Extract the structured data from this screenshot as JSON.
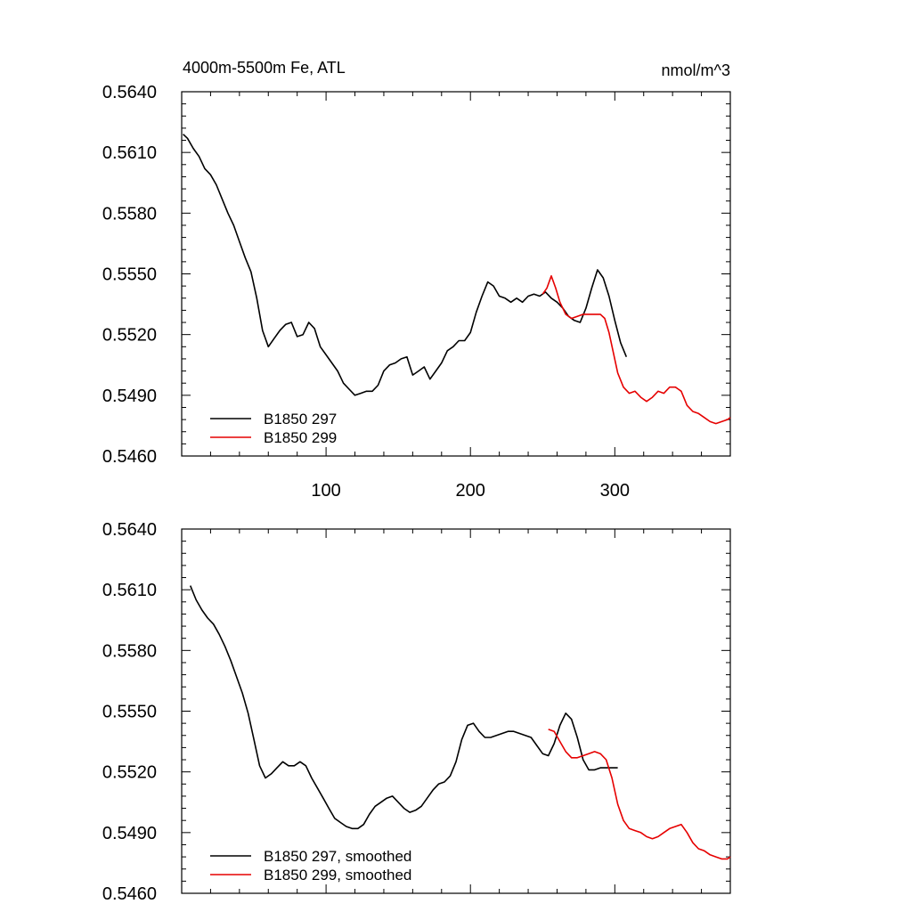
{
  "chart_data": [
    {
      "type": "line",
      "title": "4000m-5500m Fe, ATL",
      "units": "nmol/m^3",
      "xlim": [
        0,
        380
      ],
      "ylim": [
        0.546,
        0.564
      ],
      "yticks": [
        "0.5460",
        "0.5490",
        "0.5520",
        "0.5550",
        "0.5580",
        "0.5610",
        "0.5640"
      ],
      "xticks": [
        "100",
        "200",
        "300"
      ],
      "legend_placement": "bottom-left",
      "series": [
        {
          "name": "B1850 297",
          "color": "#000000",
          "x": [
            1,
            4,
            8,
            12,
            16,
            20,
            24,
            28,
            32,
            36,
            40,
            44,
            48,
            52,
            56,
            60,
            64,
            68,
            72,
            76,
            80,
            84,
            88,
            92,
            96,
            100,
            104,
            108,
            112,
            116,
            120,
            124,
            128,
            132,
            136,
            140,
            144,
            148,
            152,
            156,
            160,
            164,
            168,
            172,
            176,
            180,
            184,
            188,
            192,
            196,
            200,
            204,
            208,
            212,
            216,
            220,
            224,
            228,
            232,
            236,
            240,
            244,
            248,
            252,
            256,
            260,
            264,
            268,
            272,
            276,
            280,
            284,
            288,
            292,
            296,
            300,
            304,
            308
          ],
          "values": [
            0.5619,
            0.5617,
            0.5612,
            0.5608,
            0.5602,
            0.5599,
            0.5594,
            0.5587,
            0.558,
            0.5574,
            0.5566,
            0.5558,
            0.5551,
            0.5538,
            0.5522,
            0.5514,
            0.5518,
            0.5522,
            0.5525,
            0.5526,
            0.5519,
            0.552,
            0.5526,
            0.5523,
            0.5514,
            0.551,
            0.5506,
            0.5502,
            0.5496,
            0.5493,
            0.549,
            0.5491,
            0.5492,
            0.5492,
            0.5495,
            0.5502,
            0.5505,
            0.5506,
            0.5508,
            0.5509,
            0.55,
            0.5502,
            0.5504,
            0.5498,
            0.5502,
            0.5506,
            0.5512,
            0.5514,
            0.5517,
            0.5517,
            0.5521,
            0.5531,
            0.5539,
            0.5546,
            0.5544,
            0.5539,
            0.5538,
            0.5536,
            0.5538,
            0.5536,
            0.5539,
            0.554,
            0.5539,
            0.5541,
            0.5538,
            0.5536,
            0.5533,
            0.5529,
            0.5527,
            0.5526,
            0.5533,
            0.5543,
            0.5552,
            0.5548,
            0.5539,
            0.5527,
            0.5516,
            0.5509
          ]
        },
        {
          "name": "B1850 299",
          "color": "#e60000",
          "x": [
            250,
            253,
            256,
            259,
            262,
            266,
            270,
            274,
            278,
            282,
            286,
            290,
            293,
            296,
            299,
            302,
            306,
            310,
            314,
            318,
            322,
            326,
            330,
            334,
            338,
            342,
            346,
            350,
            354,
            358,
            362,
            366,
            370,
            374,
            378,
            382
          ],
          "values": [
            0.554,
            0.5543,
            0.5549,
            0.5543,
            0.5536,
            0.553,
            0.5528,
            0.5529,
            0.553,
            0.553,
            0.553,
            0.553,
            0.5528,
            0.5521,
            0.5511,
            0.5501,
            0.5494,
            0.5491,
            0.5492,
            0.5489,
            0.5487,
            0.5489,
            0.5492,
            0.5491,
            0.5494,
            0.5494,
            0.5492,
            0.5485,
            0.5482,
            0.5481,
            0.5479,
            0.5477,
            0.5476,
            0.5477,
            0.5478,
            0.5479
          ]
        }
      ]
    },
    {
      "type": "line",
      "xlim": [
        0,
        380
      ],
      "ylim": [
        0.546,
        0.564
      ],
      "yticks": [
        "0.5460",
        "0.5490",
        "0.5520",
        "0.5550",
        "0.5580",
        "0.5610",
        "0.5640"
      ],
      "legend_placement": "bottom-left",
      "series": [
        {
          "name": "B1850 297, smoothed",
          "color": "#000000",
          "x": [
            6,
            10,
            14,
            18,
            22,
            26,
            30,
            34,
            38,
            42,
            46,
            50,
            54,
            58,
            62,
            66,
            70,
            74,
            78,
            82,
            86,
            90,
            94,
            98,
            102,
            106,
            110,
            114,
            118,
            122,
            126,
            130,
            134,
            138,
            142,
            146,
            150,
            154,
            158,
            162,
            166,
            170,
            174,
            178,
            182,
            186,
            190,
            194,
            198,
            202,
            206,
            210,
            214,
            218,
            222,
            226,
            230,
            234,
            238,
            242,
            246,
            250,
            254,
            258,
            262,
            266,
            270,
            274,
            278,
            282,
            286,
            290,
            294,
            298,
            302
          ],
          "values": [
            0.5612,
            0.5605,
            0.56,
            0.5596,
            0.5593,
            0.5588,
            0.5582,
            0.5575,
            0.5567,
            0.5559,
            0.5549,
            0.5536,
            0.5523,
            0.5517,
            0.5519,
            0.5522,
            0.5525,
            0.5523,
            0.5523,
            0.5525,
            0.5523,
            0.5517,
            0.5512,
            0.5507,
            0.5502,
            0.5497,
            0.5495,
            0.5493,
            0.5492,
            0.5492,
            0.5494,
            0.5499,
            0.5503,
            0.5505,
            0.5507,
            0.5508,
            0.5505,
            0.5502,
            0.55,
            0.5501,
            0.5503,
            0.5507,
            0.5511,
            0.5514,
            0.5515,
            0.5518,
            0.5525,
            0.5536,
            0.5543,
            0.5544,
            0.554,
            0.5537,
            0.5537,
            0.5538,
            0.5539,
            0.554,
            0.554,
            0.5539,
            0.5538,
            0.5537,
            0.5533,
            0.5529,
            0.5528,
            0.5534,
            0.5543,
            0.5549,
            0.5546,
            0.5537,
            0.5526,
            0.5521,
            0.5521,
            0.5522,
            0.5522,
            0.5522,
            0.5522
          ]
        },
        {
          "name": "B1850 299, smoothed",
          "color": "#e60000",
          "x": [
            254,
            258,
            262,
            266,
            270,
            274,
            278,
            282,
            286,
            290,
            294,
            298,
            302,
            306,
            310,
            314,
            318,
            322,
            326,
            330,
            334,
            338,
            342,
            346,
            350,
            354,
            358,
            362,
            366,
            370,
            374,
            378,
            382
          ],
          "values": [
            0.5541,
            0.554,
            0.5535,
            0.553,
            0.5527,
            0.5527,
            0.5528,
            0.5529,
            0.553,
            0.5529,
            0.5526,
            0.5517,
            0.5504,
            0.5496,
            0.5492,
            0.5491,
            0.549,
            0.5488,
            0.5487,
            0.5488,
            0.549,
            0.5492,
            0.5493,
            0.5494,
            0.549,
            0.5485,
            0.5482,
            0.5481,
            0.5479,
            0.5478,
            0.5477,
            0.5477,
            0.5478
          ]
        }
      ]
    }
  ]
}
